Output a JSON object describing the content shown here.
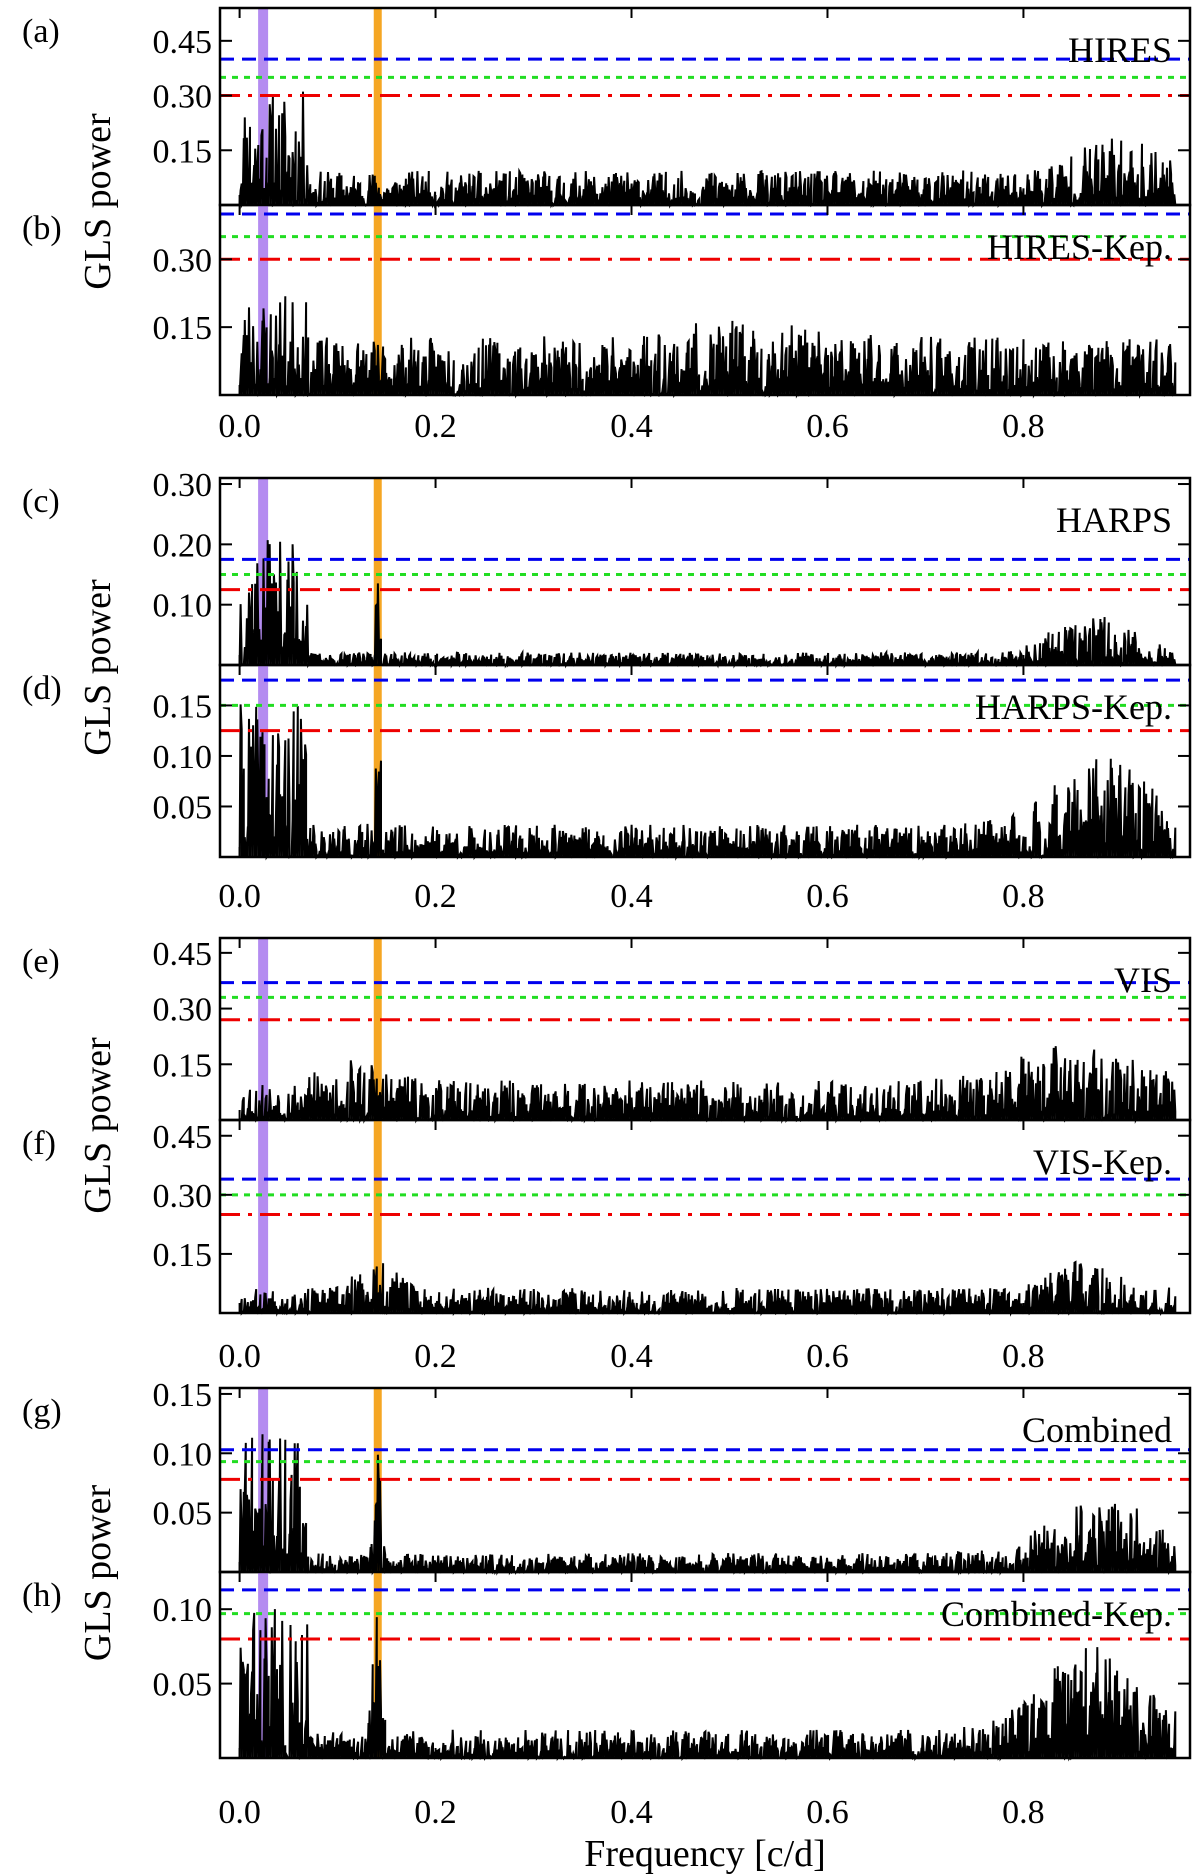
{
  "figure": {
    "xlabel": "Frequency [c/d]",
    "ylabel": "GLS power",
    "x_ticks": [
      "0.0",
      "0.2",
      "0.4",
      "0.6",
      "0.8"
    ],
    "colors": {
      "line": "#000000",
      "purple_band": "#b48cf0",
      "orange_band": "#f5a623",
      "fap_blue": "#0000ee",
      "fap_green": "#22dd22",
      "fap_red": "#ee0000"
    }
  },
  "chart_data": [
    {
      "panel": "(a)",
      "label": "HIRES",
      "type": "line",
      "ylim": [
        0,
        0.54
      ],
      "yticks": [
        0.15,
        0.3,
        0.45
      ],
      "fap": [
        0.4,
        0.35,
        0.3
      ],
      "peak": 0.33,
      "seed": 11,
      "profile": "hires"
    },
    {
      "panel": "(b)",
      "label": "HIRES-Kep.",
      "type": "line",
      "ylim": [
        0,
        0.42
      ],
      "yticks": [
        0.15,
        0.3
      ],
      "fap": [
        0.4,
        0.35,
        0.3
      ],
      "peak": 0.24,
      "seed": 23,
      "profile": "hires_kep"
    },
    {
      "panel": "(c)",
      "label": "HARPS",
      "type": "line",
      "ylim": [
        0,
        0.31
      ],
      "yticks": [
        0.1,
        0.2,
        0.3
      ],
      "fap": [
        0.175,
        0.15,
        0.125
      ],
      "peak": 0.22,
      "seed": 37,
      "profile": "harps"
    },
    {
      "panel": "(d)",
      "label": "HARPS-Kep.",
      "type": "line",
      "ylim": [
        0,
        0.19
      ],
      "yticks": [
        0.05,
        0.1,
        0.15
      ],
      "fap": [
        0.175,
        0.15,
        0.125
      ],
      "peak": 0.14,
      "seed": 41,
      "profile": "harps_kep"
    },
    {
      "panel": "(e)",
      "label": "VIS",
      "type": "line",
      "ylim": [
        0,
        0.49
      ],
      "yticks": [
        0.15,
        0.3,
        0.45
      ],
      "fap": [
        0.37,
        0.33,
        0.27
      ],
      "peak": 0.35,
      "seed": 53,
      "profile": "vis"
    },
    {
      "panel": "(f)",
      "label": "VIS-Kep.",
      "type": "line",
      "ylim": [
        0,
        0.49
      ],
      "yticks": [
        0.15,
        0.3,
        0.45
      ],
      "fap": [
        0.34,
        0.3,
        0.25
      ],
      "peak": 0.24,
      "seed": 67,
      "profile": "vis_kep"
    },
    {
      "panel": "(g)",
      "label": "Combined",
      "type": "line",
      "ylim": [
        0,
        0.155
      ],
      "yticks": [
        0.05,
        0.1,
        0.15
      ],
      "fap": [
        0.103,
        0.093,
        0.078
      ],
      "peak": 0.12,
      "seed": 71,
      "profile": "combined"
    },
    {
      "panel": "(h)",
      "label": "Combined-Kep.",
      "type": "line",
      "ylim": [
        0,
        0.125
      ],
      "yticks": [
        0.05,
        0.1
      ],
      "fap": [
        0.113,
        0.097,
        0.08
      ],
      "peak": 0.1,
      "seed": 83,
      "profile": "combined_kep"
    }
  ]
}
